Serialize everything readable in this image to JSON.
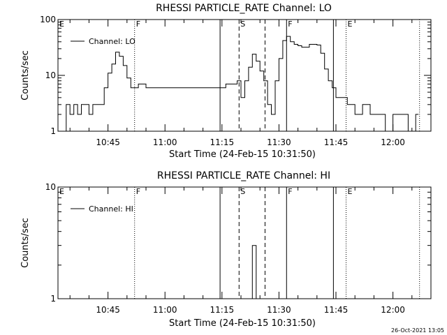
{
  "footer_stamp": "26-Oct-2021 13:05",
  "chart_data": [
    {
      "type": "line",
      "title": "RHESSI PARTICLE_RATE Channel: LO",
      "xlabel": "Start Time (24-Feb-15 10:31:50)",
      "ylabel": "Counts/sec",
      "yscale": "log",
      "ylim": [
        1,
        100
      ],
      "ytick_labels": [
        "1",
        "10",
        "100"
      ],
      "xlim": [
        "10:31:50",
        "12:10:00"
      ],
      "xtick_labels": [
        "10:45",
        "11:00",
        "11:15",
        "11:30",
        "11:45",
        "12:00"
      ],
      "legend": {
        "entry": "Channel: LO",
        "placement": "top-left"
      },
      "series": [
        {
          "name": "Channel: LO",
          "x": [
            "10:33:00",
            "10:34:00",
            "10:35:00",
            "10:36:00",
            "10:37:00",
            "10:38:00",
            "10:39:00",
            "10:40:00",
            "10:41:00",
            "10:42:00",
            "10:43:00",
            "10:44:00",
            "10:45:00",
            "10:46:00",
            "10:47:00",
            "10:48:00",
            "10:49:00",
            "10:50:00",
            "10:51:00",
            "10:52:00",
            "10:53:00",
            "10:55:00",
            "10:58:00",
            "11:01:00",
            "11:04:00",
            "11:07:00",
            "11:10:00",
            "11:13:00",
            "11:16:00",
            "11:18:00",
            "11:19:00",
            "11:20:00",
            "11:21:00",
            "11:22:00",
            "11:23:00",
            "11:24:00",
            "11:25:00",
            "11:26:00",
            "11:27:00",
            "11:28:00",
            "11:29:00",
            "11:30:00",
            "11:31:00",
            "11:32:00",
            "11:33:00",
            "11:34:00",
            "11:35:00",
            "11:36:00",
            "11:38:00",
            "11:40:00",
            "11:41:00",
            "11:42:00",
            "11:43:00",
            "11:44:00",
            "11:45:00",
            "11:46:00",
            "11:48:00",
            "11:50:00",
            "11:52:00",
            "11:54:00",
            "11:56:00",
            "11:58:00",
            "12:00:00",
            "12:02:00",
            "12:04:00",
            "12:06:00"
          ],
          "values": [
            1,
            3,
            2,
            3,
            2,
            3,
            3,
            2,
            3,
            3,
            3,
            6,
            11,
            16,
            26,
            22,
            15,
            9,
            6,
            6,
            7,
            6,
            6,
            6,
            6,
            6,
            6,
            6,
            7,
            7,
            8,
            4,
            8,
            14,
            24,
            18,
            12,
            8,
            3,
            2,
            8,
            20,
            42,
            50,
            40,
            36,
            34,
            32,
            36,
            35,
            25,
            13,
            8,
            6,
            4,
            4,
            3,
            2,
            3,
            2,
            2,
            1,
            2,
            2,
            1,
            2
          ]
        }
      ],
      "markers": [
        {
          "label": "E",
          "time": "10:31:50",
          "style": "none"
        },
        {
          "label": "F",
          "time": "10:52:00",
          "style": "dotted"
        },
        {
          "label": "",
          "time": "11:14:30",
          "style": "solid"
        },
        {
          "label": "S",
          "time": "11:19:30",
          "style": "dashed"
        },
        {
          "label": "",
          "time": "11:26:20",
          "style": "dashed"
        },
        {
          "label": "F",
          "time": "11:32:00",
          "style": "solid"
        },
        {
          "label": "",
          "time": "11:44:20",
          "style": "solid"
        },
        {
          "label": "E",
          "time": "11:47:40",
          "style": "dotted"
        },
        {
          "label": "",
          "time": "12:07:00",
          "style": "dotted"
        }
      ]
    },
    {
      "type": "line",
      "title": "RHESSI PARTICLE_RATE Channel: HI",
      "xlabel": "Start Time (24-Feb-15 10:31:50)",
      "ylabel": "Counts/sec",
      "yscale": "log",
      "ylim": [
        1,
        10
      ],
      "ytick_labels": [
        "1",
        "10"
      ],
      "xlim": [
        "10:31:50",
        "12:10:00"
      ],
      "xtick_labels": [
        "10:45",
        "11:00",
        "11:15",
        "11:30",
        "11:45",
        "12:00"
      ],
      "legend": {
        "entry": "Channel: HI",
        "placement": "top-left"
      },
      "series": [
        {
          "name": "Channel: HI",
          "x": [
            "11:22:30",
            "11:23:00",
            "11:23:40",
            "11:24:00"
          ],
          "values": [
            1,
            3,
            3,
            1
          ]
        }
      ],
      "markers": [
        {
          "label": "E",
          "time": "10:31:50",
          "style": "none"
        },
        {
          "label": "F",
          "time": "10:52:00",
          "style": "dotted"
        },
        {
          "label": "",
          "time": "11:14:30",
          "style": "solid"
        },
        {
          "label": "S",
          "time": "11:19:30",
          "style": "dashed"
        },
        {
          "label": "",
          "time": "11:26:20",
          "style": "dashed"
        },
        {
          "label": "F",
          "time": "11:32:00",
          "style": "solid"
        },
        {
          "label": "",
          "time": "11:44:20",
          "style": "solid"
        },
        {
          "label": "E",
          "time": "11:47:40",
          "style": "dotted"
        },
        {
          "label": "",
          "time": "12:07:00",
          "style": "dotted"
        }
      ]
    }
  ]
}
